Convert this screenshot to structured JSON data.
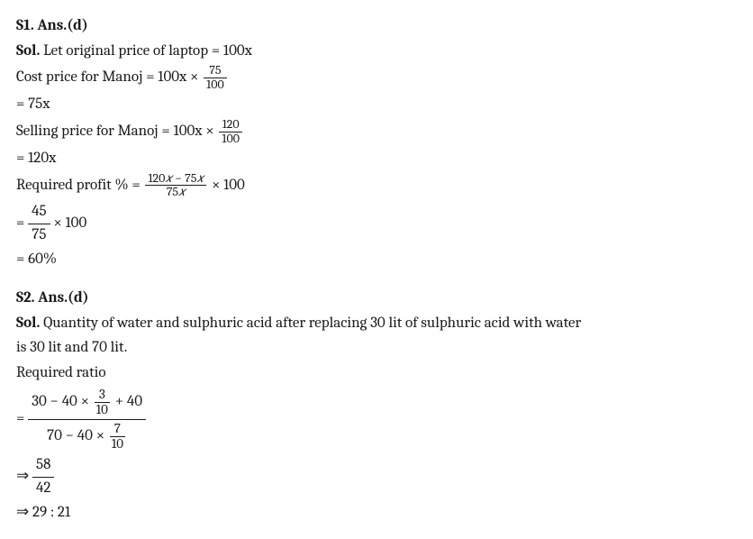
{
  "s1": {
    "heading": "S1. Ans.(d)",
    "sol_label": "Sol.",
    "line1_pre": " Let original price of laptop = 100x",
    "line2_pre": "Cost price for Manoj = 100x × ",
    "frac1_num": "75",
    "frac1_den": "100",
    "line3": "= 75x",
    "line4_pre": "Selling price for Manoj = 100x × ",
    "frac2_num": "120",
    "frac2_den": "100",
    "line5": "= 120x",
    "line6_pre": "Required profit % = ",
    "frac3_num_a": "120",
    "frac3_var": "𝑥",
    "frac3_num_b": " − 75",
    "frac3_den_a": "75",
    "line6_post": " × 100",
    "line7_eq": "= ",
    "frac4_num": "45",
    "frac4_den": "75",
    "line7_post": " × 100",
    "line8": "= 60%"
  },
  "s2": {
    "heading": "S2. Ans.(d)",
    "sol_label": "Sol.",
    "line1_pre": " Quantity of water and sulphuric acid after replacing 30 lit of sulphuric acid with water",
    "line1b": "is 30 lit and 70 lit.",
    "line2": "Required ratio",
    "eq": "= ",
    "num_a": "30 − 40 × ",
    "nf1_num": "3",
    "nf1_den": "10",
    "num_b": " + 40",
    "den_a": "70 − 40 × ",
    "nf2_num": "7",
    "nf2_den": "10",
    "arrow": "⇒ ",
    "frac5_num": "58",
    "frac5_den": "42",
    "line_last": "⇒ 29 : 21"
  }
}
